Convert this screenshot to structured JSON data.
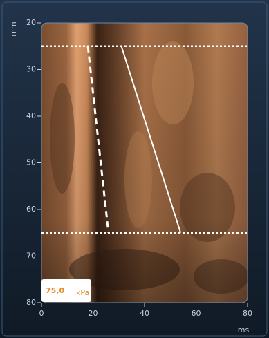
{
  "chart_data": {
    "type": "line",
    "x_label": "ms",
    "y_label": "mm",
    "xlim": [
      0,
      80
    ],
    "xticks": [
      0,
      20,
      40,
      60,
      80
    ],
    "ylim": [
      80,
      20
    ],
    "yticks": [
      20,
      30,
      40,
      50,
      60,
      70,
      80
    ],
    "hlines": [
      25,
      65
    ],
    "hline_color": "#ffffff",
    "series": [
      {
        "color": "#ffffff",
        "dashed": true,
        "x": [
          18,
          26
        ],
        "values": [
          25,
          65
        ]
      },
      {
        "color": "#ffffff",
        "dashed": false,
        "x": [
          31,
          54
        ],
        "values": [
          25,
          65
        ]
      }
    ],
    "annotation": {
      "value": "75,0",
      "unit": "kPa"
    }
  }
}
